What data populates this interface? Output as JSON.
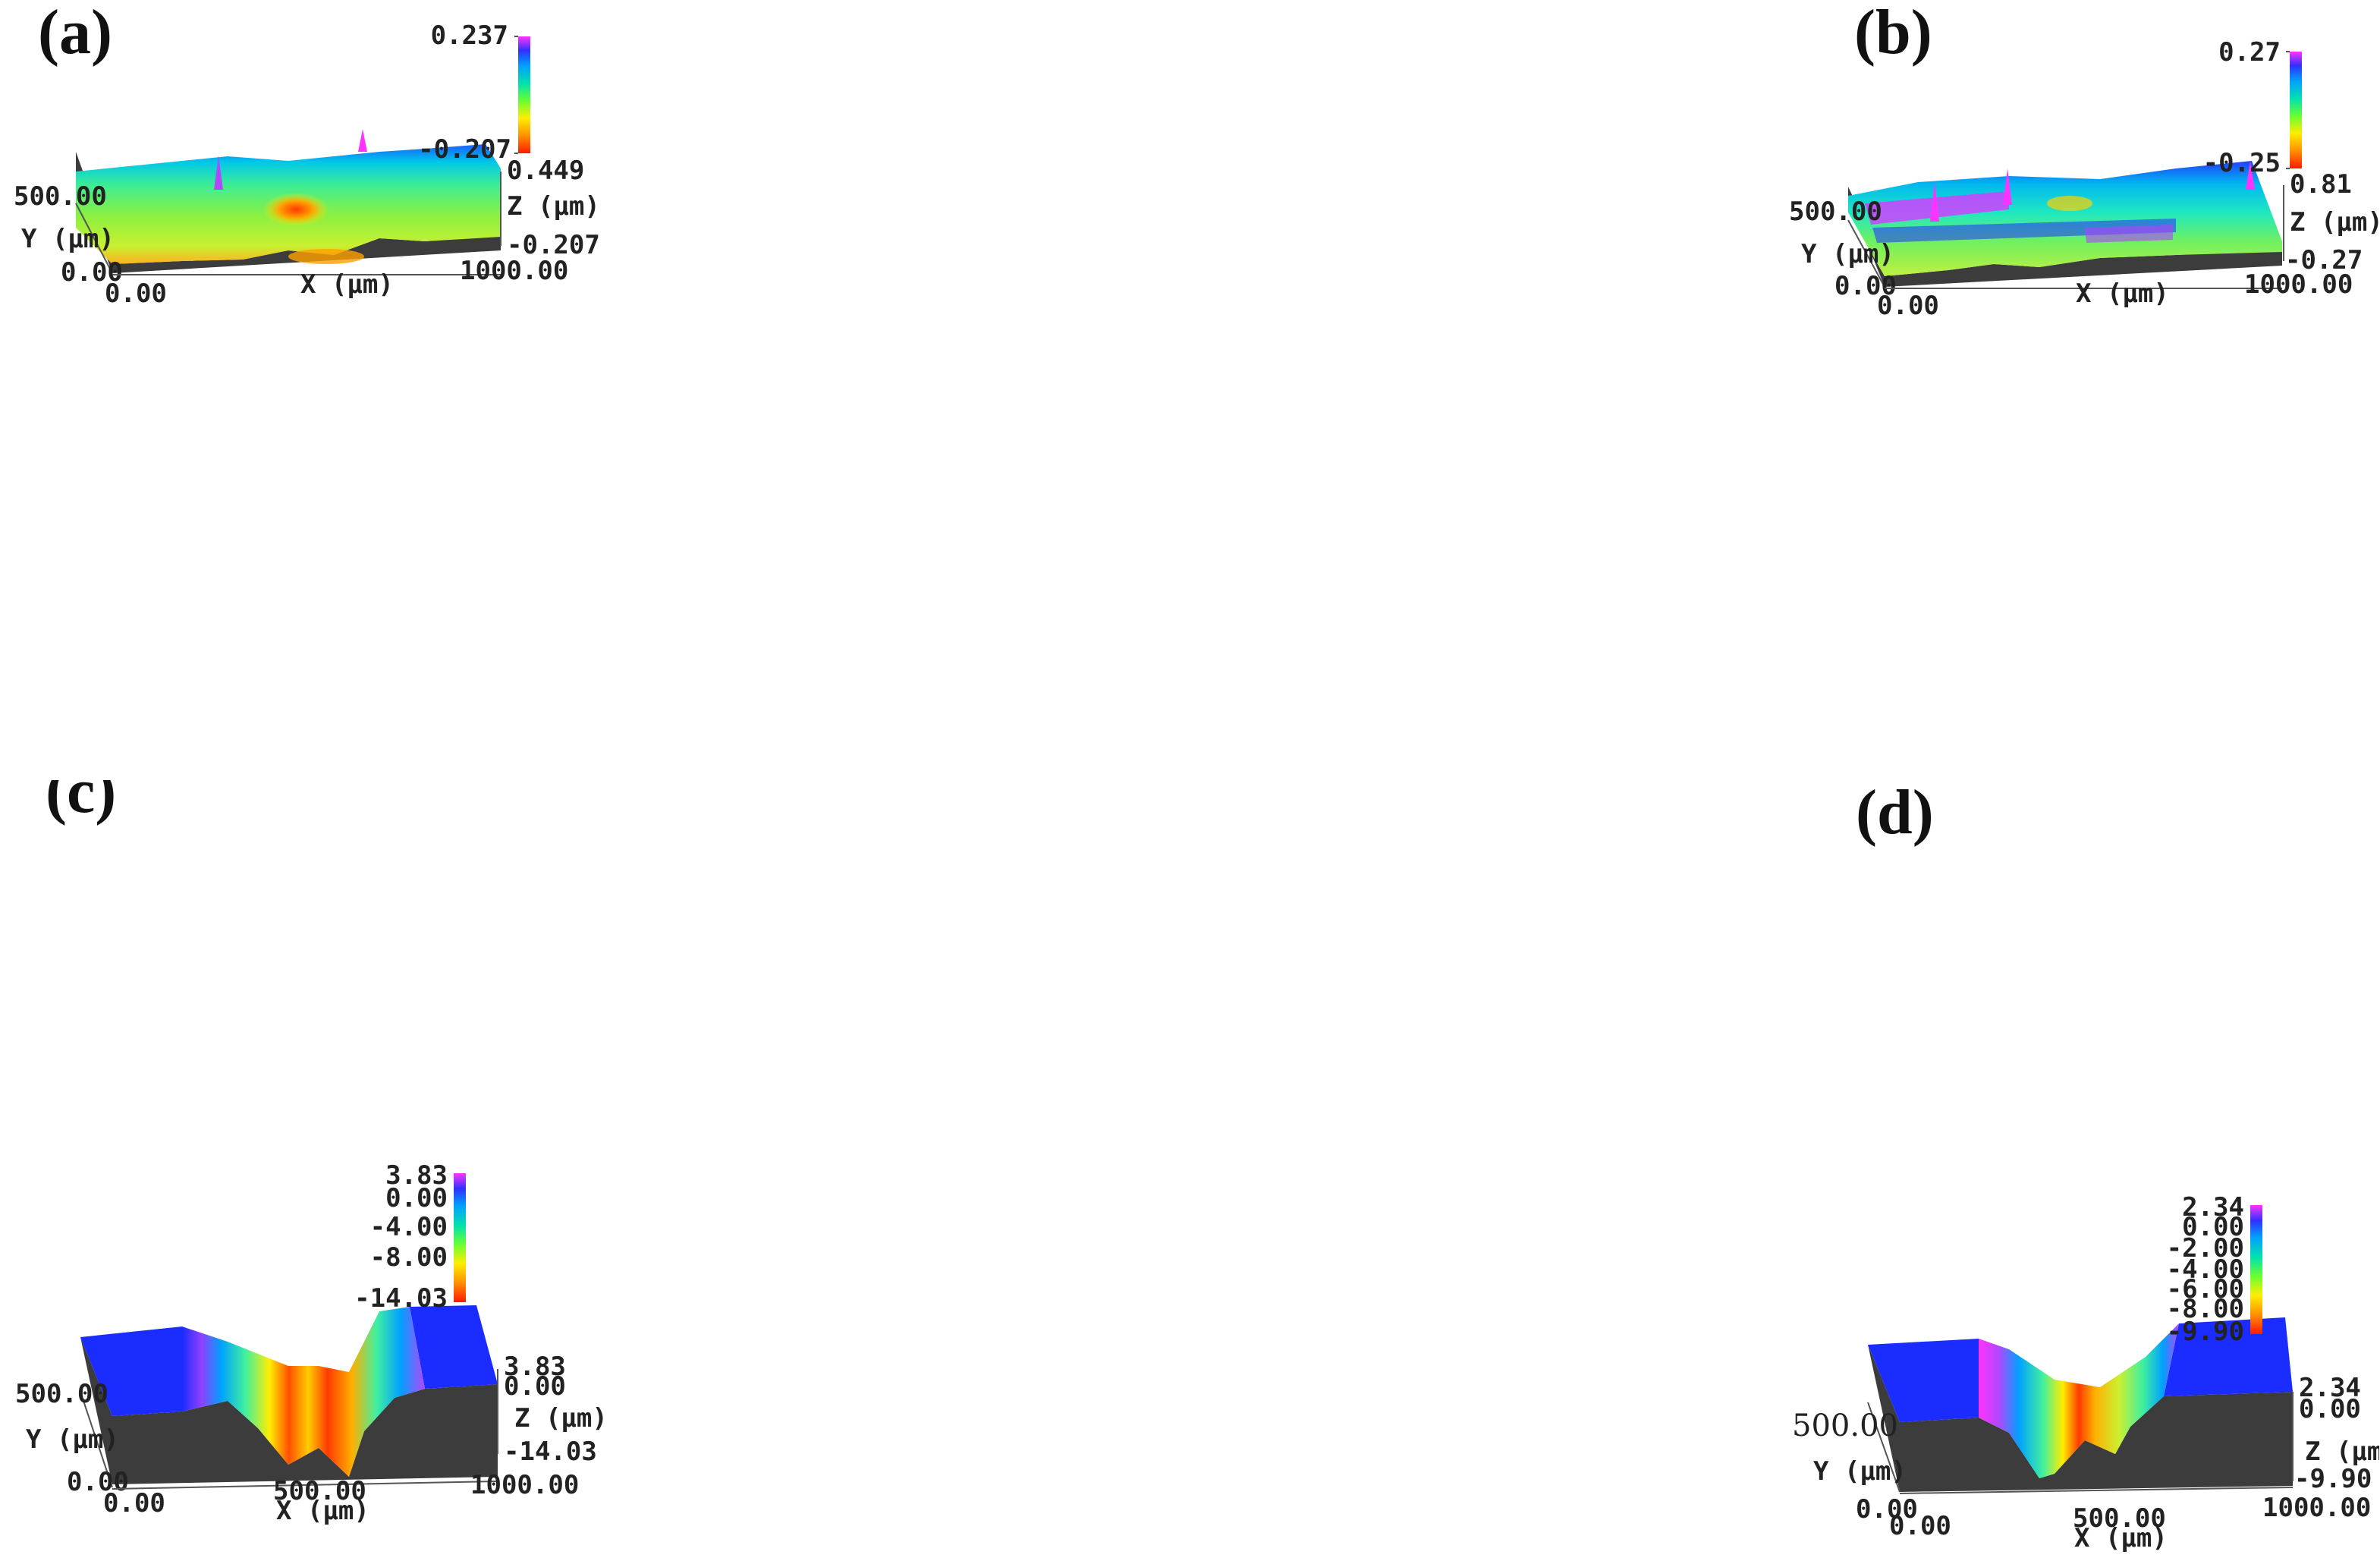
{
  "panels": [
    {
      "label": "(a)",
      "colorbar": {
        "max": "0.237",
        "min": "-0.207",
        "ticks": []
      },
      "z_axis": {
        "top": "0.449",
        "bottom": "-0.207",
        "extra": "",
        "label": "Z (µm)"
      },
      "y_axis": {
        "top": "500.00",
        "bottom": "0.00",
        "label": "Y (µm)"
      },
      "x_axis": {
        "start": "0.00",
        "mid": "",
        "end": "1000.00",
        "label": "X (µm)"
      }
    },
    {
      "label": "(b)",
      "colorbar": {
        "max": "0.27",
        "min": "-0.25",
        "ticks": []
      },
      "z_axis": {
        "top": "0.81",
        "bottom": "-0.27",
        "extra": "",
        "label": "Z (µm)"
      },
      "y_axis": {
        "top": "500.00",
        "bottom": "0.00",
        "label": "Y (µm)"
      },
      "x_axis": {
        "start": "0.00",
        "mid": "",
        "end": "1000.00",
        "label": "X (µm)"
      }
    },
    {
      "label": "(c)",
      "colorbar": {
        "max": "3.83",
        "min": "-14.03",
        "ticks": [
          "0.00",
          "-4.00",
          "-8.00"
        ]
      },
      "z_axis": {
        "top": "3.83",
        "bottom": "-14.03",
        "extra": "0.00",
        "label": "Z (µm)"
      },
      "y_axis": {
        "top": "500.00",
        "bottom": "0.00",
        "label": "Y (µm)"
      },
      "x_axis": {
        "start": "0.00",
        "mid": "500.00",
        "end": "1000.00",
        "label": "X (µm)"
      }
    },
    {
      "label": "(d)",
      "colorbar": {
        "max": "2.34",
        "min": "-9.90",
        "ticks": [
          "0.00",
          "-2.00",
          "-4.00",
          "-6.00",
          "-8.00"
        ]
      },
      "z_axis": {
        "top": "2.34",
        "bottom": "-9.90",
        "extra": "0.00",
        "label": "Z (µm)"
      },
      "y_axis": {
        "top": "500.00",
        "bottom": "0.00",
        "label": "Y (µm)"
      },
      "x_axis": {
        "start": "0.00",
        "mid": "500.00",
        "end": "1000.00",
        "label": "X (µm)"
      }
    }
  ],
  "colors": {
    "rainbow": [
      "#ff1a00",
      "#ff8c00",
      "#ffee00",
      "#66ff33",
      "#00e6a0",
      "#00b4ff",
      "#1a33ff",
      "#b347ff",
      "#ff33ff"
    ],
    "base": "#3c3c3c",
    "surface_flat": "#1a2cff"
  }
}
